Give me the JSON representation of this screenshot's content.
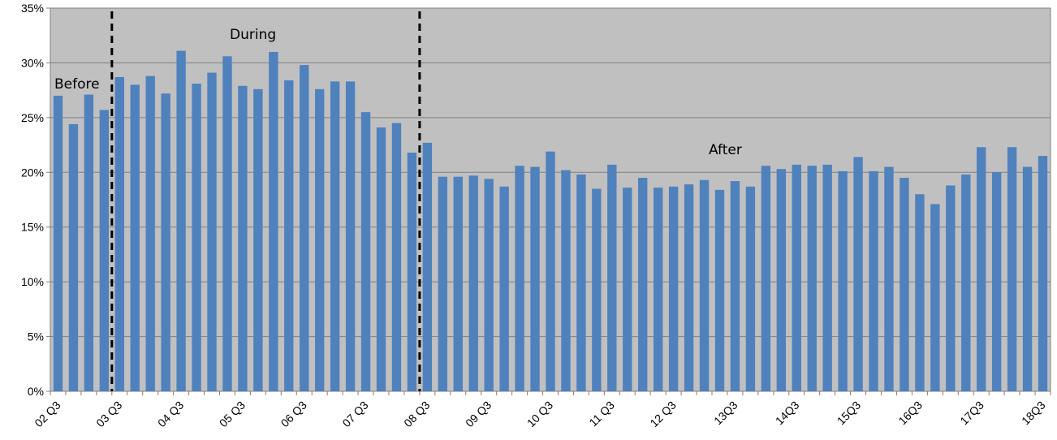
{
  "chart_data": {
    "type": "bar",
    "categories": [
      "02 Q3",
      "02 Q4",
      "03 Q1",
      "03 Q2",
      "03 Q3",
      "03 Q4",
      "04 Q1",
      "04 Q2",
      "04 Q3",
      "04 Q4",
      "05 Q1",
      "05 Q2",
      "05 Q3",
      "05 Q4",
      "06 Q1",
      "06 Q2",
      "06 Q3",
      "06 Q4",
      "07 Q1",
      "07 Q2",
      "07 Q3",
      "07 Q4",
      "08 Q1",
      "08 Q2",
      "08 Q3",
      "08 Q4",
      "09 Q1",
      "09 Q2",
      "09 Q3",
      "09 Q4",
      "10 Q1",
      "10 Q2",
      "10 Q3",
      "10 Q4",
      "11 Q1",
      "11 Q2",
      "11 Q3",
      "11 Q4",
      "12 Q1",
      "12 Q2",
      "12 Q3",
      "12 Q4",
      "13 Q1",
      "13 Q2",
      "13Q3",
      "13Q4",
      "14Q1",
      "14Q2",
      "14Q3",
      "14Q4",
      "15Q1",
      "15Q2",
      "15Q3",
      "15Q4",
      "16Q1",
      "16Q2",
      "16Q3",
      "16Q4",
      "17Q1",
      "17Q2",
      "17Q3",
      "17Q4",
      "18Q1",
      "18Q2",
      "18Q3"
    ],
    "values": [
      27.0,
      24.4,
      27.1,
      25.7,
      28.7,
      28.0,
      28.8,
      27.2,
      31.1,
      28.1,
      29.1,
      30.6,
      27.9,
      27.6,
      31.0,
      28.4,
      29.8,
      27.6,
      28.3,
      28.3,
      25.5,
      24.1,
      24.5,
      21.8,
      22.7,
      19.6,
      19.6,
      19.7,
      19.4,
      18.7,
      20.6,
      20.5,
      21.9,
      20.2,
      19.8,
      18.5,
      20.7,
      18.6,
      19.5,
      18.6,
      18.7,
      18.9,
      19.3,
      18.4,
      19.2,
      18.7,
      20.6,
      20.3,
      20.7,
      20.6,
      20.7,
      20.1,
      21.4,
      20.1,
      20.5,
      19.5,
      18.0,
      17.1,
      18.8,
      19.8,
      22.3,
      20.0,
      22.3,
      20.5,
      21.5
    ],
    "x_tick_labels": [
      "02 Q3",
      "03 Q3",
      "04 Q3",
      "05 Q3",
      "06 Q3",
      "07 Q3",
      "08 Q3",
      "09 Q3",
      "10 Q3",
      "11 Q3",
      "12 Q3",
      "13Q3",
      "14Q3",
      "15Q3",
      "16Q3",
      "17Q3",
      "18Q3"
    ],
    "y_tick_labels": [
      "0%",
      "5%",
      "10%",
      "15%",
      "20%",
      "25%",
      "30%",
      "35%"
    ],
    "ylim": [
      0,
      35
    ],
    "grid": true,
    "title": "",
    "xlabel": "",
    "ylabel": "",
    "legend": "none",
    "bar_color": "#4F81BD",
    "plot_background": "#C0C0C0",
    "divider_lines_at": [
      "03 Q2",
      "08 Q2"
    ],
    "annotations": [
      "Before",
      "During",
      "After"
    ]
  }
}
